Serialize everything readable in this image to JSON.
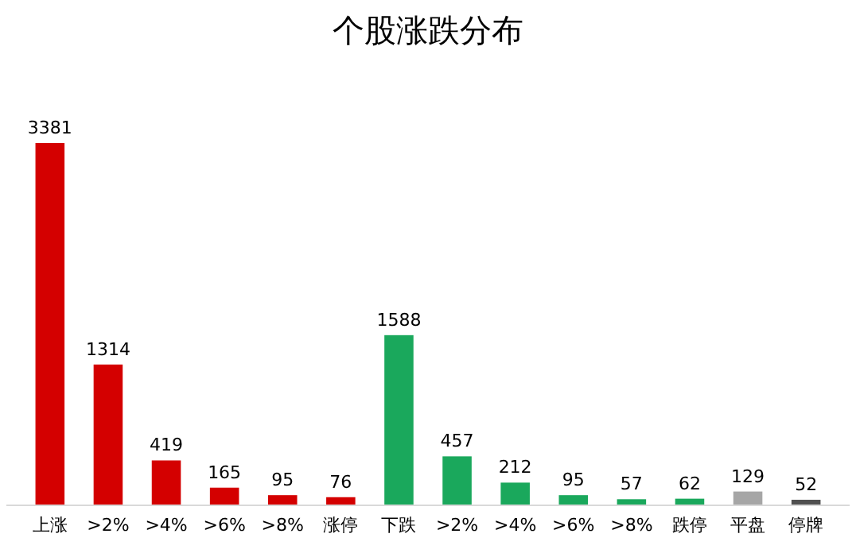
{
  "chart_data": {
    "type": "bar",
    "title": "个股涨跌分布",
    "categories": [
      "上涨",
      ">2%",
      ">4%",
      ">6%",
      ">8%",
      "涨停",
      "下跌",
      ">2%",
      ">4%",
      ">6%",
      ">8%",
      "跌停",
      "平盘",
      "停牌"
    ],
    "values": [
      3381,
      1314,
      419,
      165,
      95,
      76,
      1588,
      457,
      212,
      95,
      57,
      62,
      129,
      52
    ],
    "colors": [
      "#d40000",
      "#d40000",
      "#d40000",
      "#d40000",
      "#d40000",
      "#d40000",
      "#1aa85c",
      "#1aa85c",
      "#1aa85c",
      "#1aa85c",
      "#1aa85c",
      "#1aa85c",
      "#a6a6a6",
      "#505050"
    ],
    "data_labels": true,
    "relative": false
  }
}
